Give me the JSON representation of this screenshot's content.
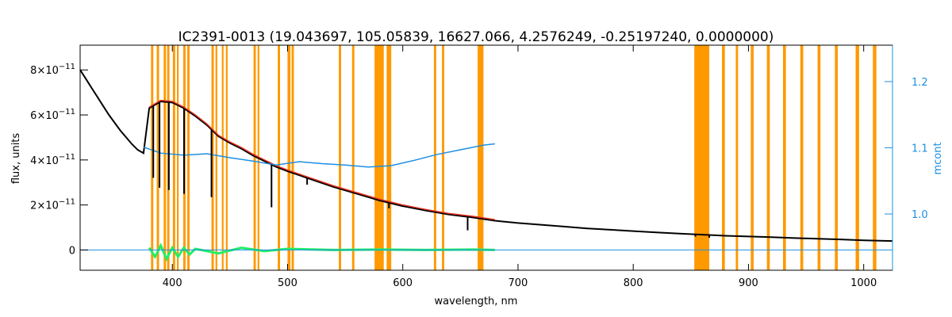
{
  "chart_data": {
    "type": "line",
    "title": "IC2391-0013   (19.043697, 105.05839, 16627.066, 4.2576249, -0.25197240, 0.0000000)",
    "xlabel": "wavelength, nm",
    "ylabel": "flux, units",
    "ylabel_right": "mcont",
    "xlim": [
      320,
      1025
    ],
    "ylim": [
      -9e-12,
      9.1e-11
    ],
    "ylim_right": [
      0.915,
      1.255
    ],
    "x_ticks": [
      400,
      500,
      600,
      700,
      800,
      900,
      1000
    ],
    "x_tick_labels": [
      "400",
      "500",
      "600",
      "700",
      "800",
      "900",
      "1000"
    ],
    "y_ticks": [
      0,
      2e-11,
      4e-11,
      6e-11,
      8e-11
    ],
    "y_tick_labels": [
      {
        "mantissa": "0",
        "exponent": ""
      },
      {
        "mantissa": "2×10",
        "exponent": "−11"
      },
      {
        "mantissa": "4×10",
        "exponent": "−11"
      },
      {
        "mantissa": "6×10",
        "exponent": "−11"
      },
      {
        "mantissa": "8×10",
        "exponent": "−11"
      }
    ],
    "y_right_ticks": [
      1.0,
      1.1,
      1.2
    ],
    "y_right_tick_labels": [
      "1.0",
      "1.1",
      "1.2"
    ],
    "colors": {
      "observed": "#000000",
      "model": "#e0301e",
      "continuum": "#1e8fe0",
      "residual": "#22ee66",
      "mask": "#ff9900",
      "right_axis": "#1e8fe0"
    },
    "mask_bands": [
      [
        381.5,
        383.5
      ],
      [
        386.5,
        388.5
      ],
      [
        392.5,
        394.5
      ],
      [
        395.5,
        397.5
      ],
      [
        400.5,
        402.5
      ],
      [
        404,
        405.5
      ],
      [
        409.5,
        411.5
      ],
      [
        413,
        415
      ],
      [
        434,
        436
      ],
      [
        437.5,
        439
      ],
      [
        443,
        444.5
      ],
      [
        446.5,
        448
      ],
      [
        470.5,
        472.5
      ],
      [
        474,
        475.5
      ],
      [
        491.5,
        493.5
      ],
      [
        500,
        502.5
      ],
      [
        503.5,
        505.5
      ],
      [
        544.5,
        546.5
      ],
      [
        556,
        558
      ],
      [
        575.5,
        583.5
      ],
      [
        586,
        590
      ],
      [
        627,
        629
      ],
      [
        634,
        636
      ],
      [
        665,
        670
      ],
      [
        853,
        866
      ],
      [
        877,
        879.5
      ],
      [
        889,
        891
      ],
      [
        902,
        904.5
      ],
      [
        916,
        918.5
      ],
      [
        930,
        932.5
      ],
      [
        945,
        947.5
      ],
      [
        960,
        962.5
      ],
      [
        975,
        977.5
      ],
      [
        993,
        996
      ],
      [
        1008,
        1011
      ]
    ],
    "series": [
      {
        "name": "",
        "role": "observed",
        "x": [
          320,
          325,
          330,
          335,
          340,
          345,
          350,
          355,
          360,
          365,
          370,
          375,
          380,
          390,
          400,
          410,
          420,
          430,
          440,
          450,
          460,
          470,
          480,
          490,
          500,
          520,
          540,
          560,
          580,
          600,
          620,
          640,
          660,
          680,
          700,
          720,
          740,
          760,
          780,
          800,
          820,
          840,
          860,
          880,
          900,
          920,
          940,
          960,
          980,
          1000,
          1025
        ],
        "y": [
          8e-11,
          7.6e-11,
          7.2e-11,
          6.8e-11,
          6.4e-11,
          6e-11,
          5.65e-11,
          5.3e-11,
          5e-11,
          4.7e-11,
          4.45e-11,
          4.3e-11,
          6.3e-11,
          6.6e-11,
          6.55e-11,
          6.3e-11,
          5.95e-11,
          5.55e-11,
          5.05e-11,
          4.75e-11,
          4.5e-11,
          4.2e-11,
          3.95e-11,
          3.7e-11,
          3.5e-11,
          3.15e-11,
          2.8e-11,
          2.5e-11,
          2.2e-11,
          1.95e-11,
          1.75e-11,
          1.58e-11,
          1.45e-11,
          1.3e-11,
          1.2e-11,
          1.12e-11,
          1.04e-11,
          9.6e-12,
          9e-12,
          8.4e-12,
          7.8e-12,
          7.3e-12,
          6.8e-12,
          6.3e-12,
          6e-12,
          5.7e-12,
          5.3e-12,
          5e-12,
          4.7e-12,
          4.3e-12,
          4e-12
        ]
      },
      {
        "name": "",
        "role": "model",
        "x": [
          380,
          390,
          400,
          410,
          420,
          430,
          440,
          450,
          460,
          470,
          480,
          490,
          500,
          520,
          540,
          560,
          580,
          600,
          620,
          640,
          660,
          680
        ],
        "y": [
          6.35e-11,
          6.65e-11,
          6.6e-11,
          6.35e-11,
          6e-11,
          5.6e-11,
          5.1e-11,
          4.8e-11,
          4.55e-11,
          4.25e-11,
          4e-11,
          3.75e-11,
          3.55e-11,
          3.2e-11,
          2.85e-11,
          2.55e-11,
          2.25e-11,
          2e-11,
          1.8e-11,
          1.62e-11,
          1.5e-11,
          1.35e-11
        ]
      },
      {
        "name": "",
        "role": "continuum",
        "axis": "right",
        "x": [
          375,
          390,
          410,
          430,
          450,
          470,
          490,
          510,
          530,
          550,
          570,
          590,
          610,
          630,
          650,
          670,
          680
        ],
        "y": [
          1.101,
          1.092,
          1.089,
          1.091,
          1.085,
          1.08,
          1.074,
          1.079,
          1.076,
          1.074,
          1.071,
          1.073,
          1.081,
          1.09,
          1.097,
          1.104,
          1.106
        ]
      },
      {
        "name": "",
        "role": "residual",
        "x": [
          380,
          385,
          390,
          395,
          400,
          405,
          410,
          415,
          420,
          440,
          460,
          480,
          500,
          540,
          580,
          620,
          660,
          680
        ],
        "y": [
          1e-12,
          -3e-12,
          2e-12,
          -4e-12,
          1e-12,
          -3e-12,
          1e-12,
          -2e-12,
          5e-13,
          -1.5e-12,
          1e-12,
          -5e-13,
          5e-13,
          0.0,
          2e-13,
          0.0,
          2e-13,
          0.0
        ]
      },
      {
        "name": "",
        "role": "baseline",
        "x": [
          320,
          1025
        ],
        "y": [
          0.0,
          0.0
        ]
      }
    ],
    "absorption_lines": [
      {
        "x": 383.5,
        "depth": 3.2e-11
      },
      {
        "x": 388.9,
        "depth": 3.8e-11
      },
      {
        "x": 397.0,
        "depth": 3.9e-11
      },
      {
        "x": 410.2,
        "depth": 3.8e-11
      },
      {
        "x": 434.0,
        "depth": 3e-11
      },
      {
        "x": 486.1,
        "depth": 1.9e-11
      },
      {
        "x": 656.3,
        "depth": 6e-12
      },
      {
        "x": 588.0,
        "depth": 2.5e-12
      },
      {
        "x": 517.0,
        "depth": 3e-12
      },
      {
        "x": 866.0,
        "depth": 1.2e-12
      },
      {
        "x": 854.0,
        "depth": 1e-12
      }
    ]
  }
}
